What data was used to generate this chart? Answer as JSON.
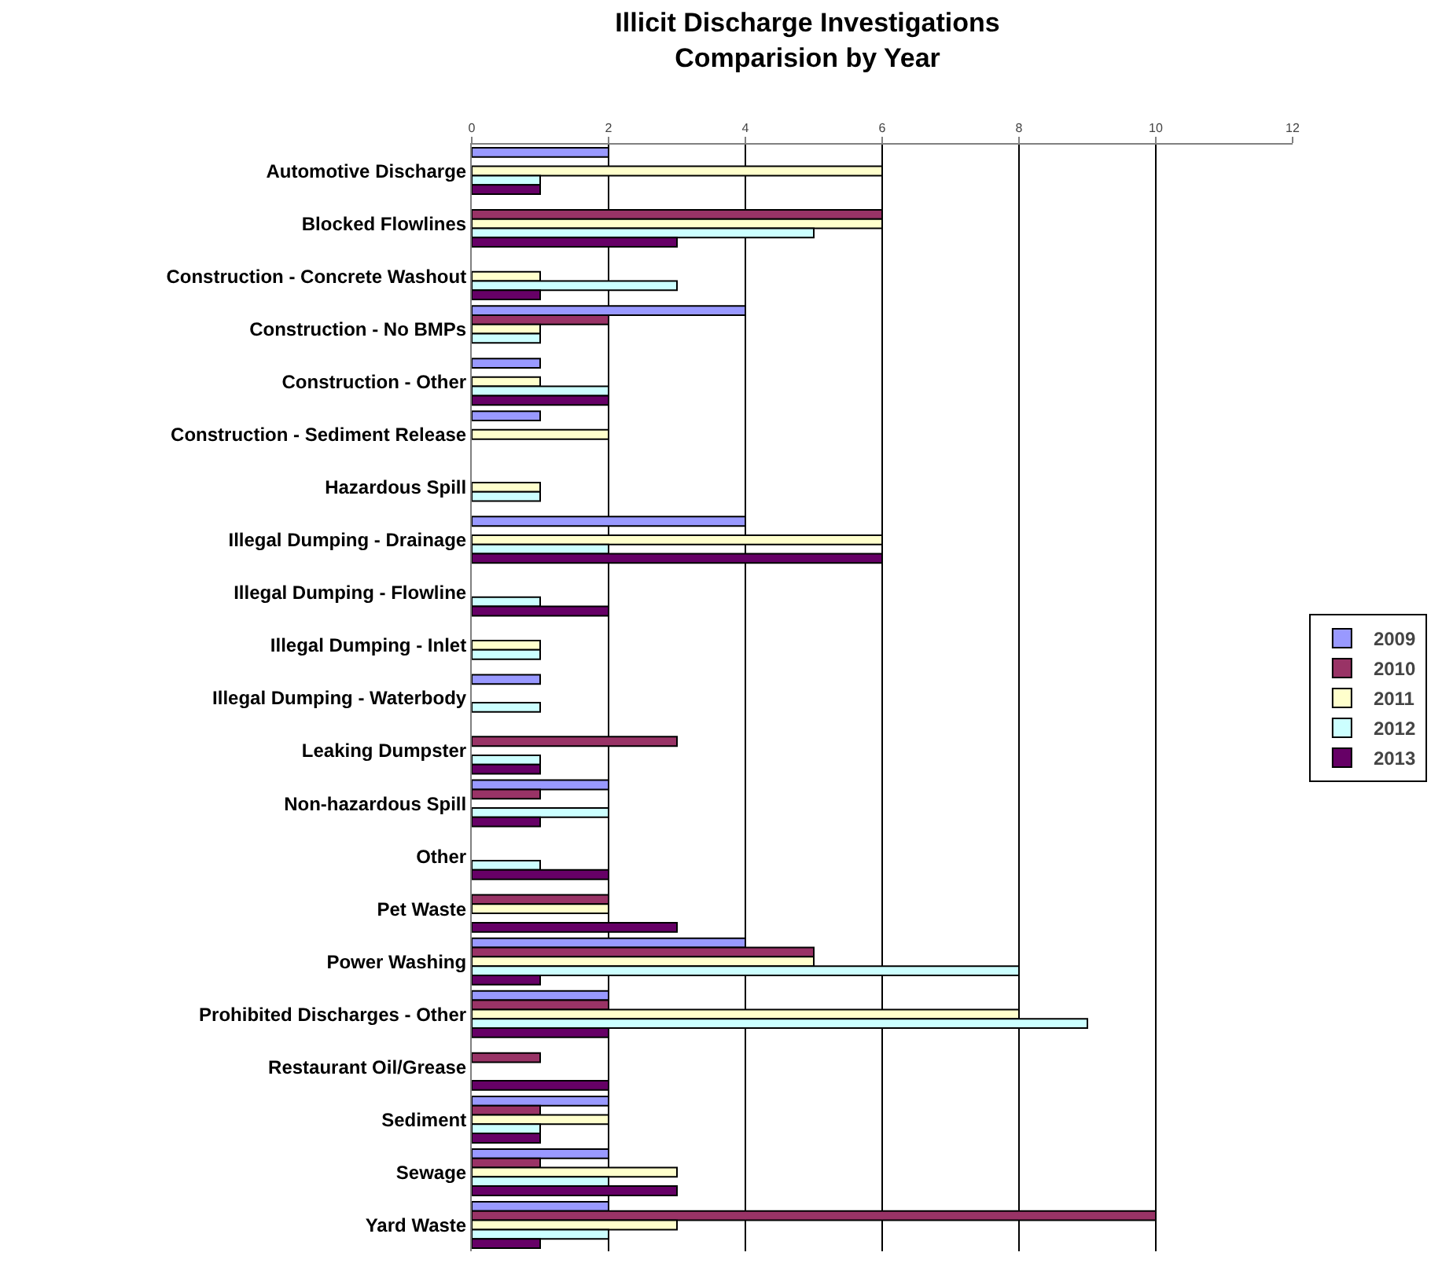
{
  "chart_data": {
    "type": "bar",
    "orientation": "horizontal",
    "title": "Illicit Discharge Investigations\nComparision by Year",
    "categories": [
      "Automotive Discharge",
      "Blocked Flowlines",
      "Construction - Concrete Washout",
      "Construction - No BMPs",
      "Construction - Other",
      "Construction - Sediment Release",
      "Hazardous Spill",
      "Illegal Dumping - Drainage",
      "Illegal Dumping - Flowline",
      "Illegal Dumping - Inlet",
      "Illegal Dumping - Waterbody",
      "Leaking Dumpster",
      "Non-hazardous Spill",
      "Other",
      "Pet Waste",
      "Power Washing",
      "Prohibited Discharges - Other",
      "Restaurant Oil/Grease",
      "Sediment",
      "Sewage",
      "Yard Waste"
    ],
    "series": [
      {
        "name": "2009",
        "color": "#9999ff",
        "values": [
          2,
          null,
          null,
          4,
          1,
          1,
          null,
          4,
          null,
          null,
          1,
          null,
          2,
          null,
          null,
          4,
          2,
          null,
          2,
          2,
          2
        ]
      },
      {
        "name": "2010",
        "color": "#993366",
        "values": [
          null,
          6,
          null,
          2,
          null,
          null,
          null,
          null,
          null,
          null,
          null,
          3,
          1,
          null,
          2,
          5,
          2,
          1,
          1,
          1,
          10
        ]
      },
      {
        "name": "2011",
        "color": "#ffffcc",
        "values": [
          6,
          6,
          1,
          1,
          1,
          2,
          1,
          6,
          null,
          1,
          null,
          null,
          null,
          null,
          2,
          5,
          8,
          null,
          2,
          3,
          3
        ]
      },
      {
        "name": "2012",
        "color": "#ccffff",
        "values": [
          1,
          5,
          3,
          1,
          2,
          null,
          1,
          2,
          1,
          1,
          1,
          1,
          2,
          1,
          null,
          8,
          9,
          null,
          1,
          2,
          2
        ]
      },
      {
        "name": "2013",
        "color": "#660066",
        "values": [
          1,
          3,
          1,
          null,
          2,
          null,
          null,
          6,
          2,
          null,
          null,
          1,
          1,
          2,
          3,
          1,
          2,
          2,
          1,
          3,
          1
        ]
      }
    ],
    "xlim": [
      0,
      12
    ],
    "xticks": [
      0,
      2,
      4,
      6,
      8,
      10,
      12
    ],
    "grid": "x",
    "legend": "right"
  }
}
